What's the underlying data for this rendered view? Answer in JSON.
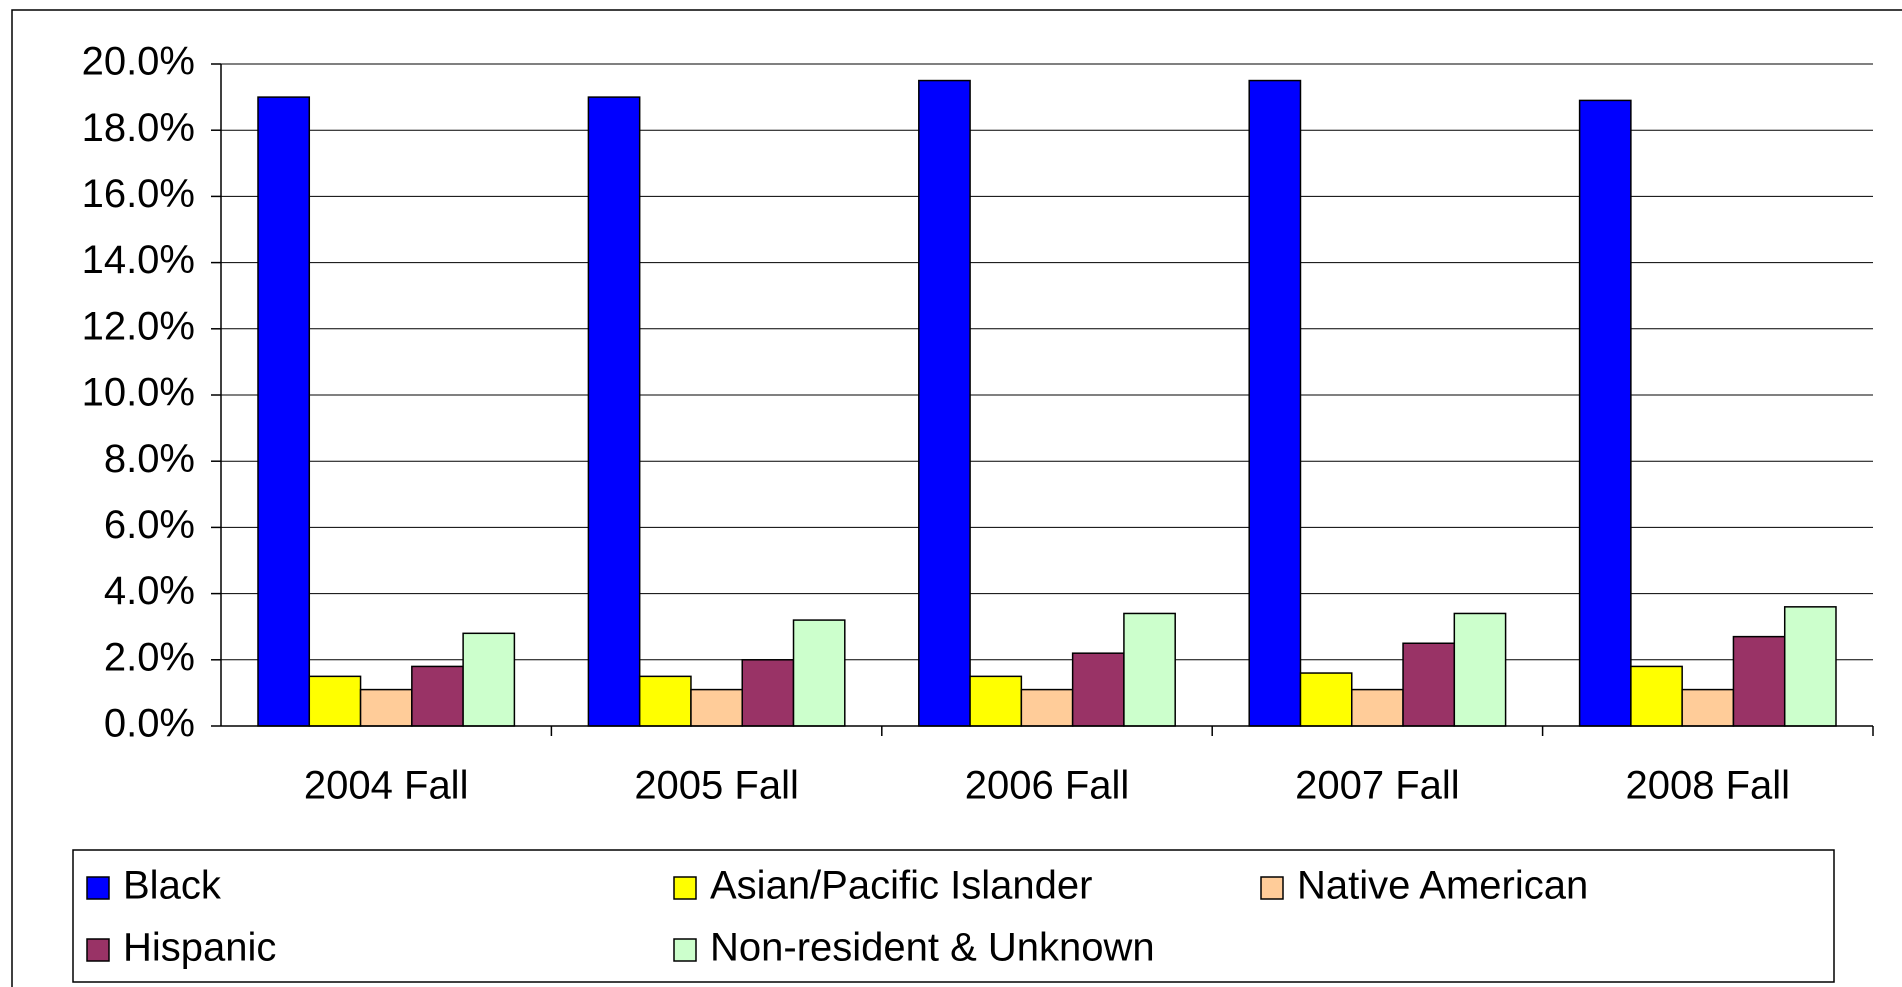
{
  "chart_data": {
    "type": "bar",
    "categories": [
      "2004 Fall",
      "2005 Fall",
      "2006 Fall",
      "2007 Fall",
      "2008 Fall"
    ],
    "series": [
      {
        "name": "Black",
        "color": "#0000ff",
        "values": [
          19.0,
          19.0,
          19.5,
          19.5,
          18.9
        ]
      },
      {
        "name": "Asian/Pacific Islander",
        "color": "#ffff00",
        "values": [
          1.5,
          1.5,
          1.5,
          1.6,
          1.8
        ]
      },
      {
        "name": "Native American",
        "color": "#ffcc99",
        "values": [
          1.1,
          1.1,
          1.1,
          1.1,
          1.1
        ]
      },
      {
        "name": "Hispanic",
        "color": "#993366",
        "values": [
          1.8,
          2.0,
          2.2,
          2.5,
          2.7
        ]
      },
      {
        "name": "Non-resident & Unknown",
        "color": "#ccffcc",
        "values": [
          2.8,
          3.2,
          3.4,
          3.4,
          3.6
        ]
      }
    ],
    "ylim": [
      0,
      20
    ],
    "yticks": [
      {
        "value": 0,
        "label": "0.0%"
      },
      {
        "value": 2,
        "label": "2.0%"
      },
      {
        "value": 4,
        "label": "4.0%"
      },
      {
        "value": 6,
        "label": "6.0%"
      },
      {
        "value": 8,
        "label": "8.0%"
      },
      {
        "value": 10,
        "label": "10.0%"
      },
      {
        "value": 12,
        "label": "12.0%"
      },
      {
        "value": 14,
        "label": "14.0%"
      },
      {
        "value": 16,
        "label": "16.0%"
      },
      {
        "value": 18,
        "label": "18.0%"
      },
      {
        "value": 20,
        "label": "20.0%"
      }
    ],
    "grid": true,
    "legend": "bottom"
  }
}
